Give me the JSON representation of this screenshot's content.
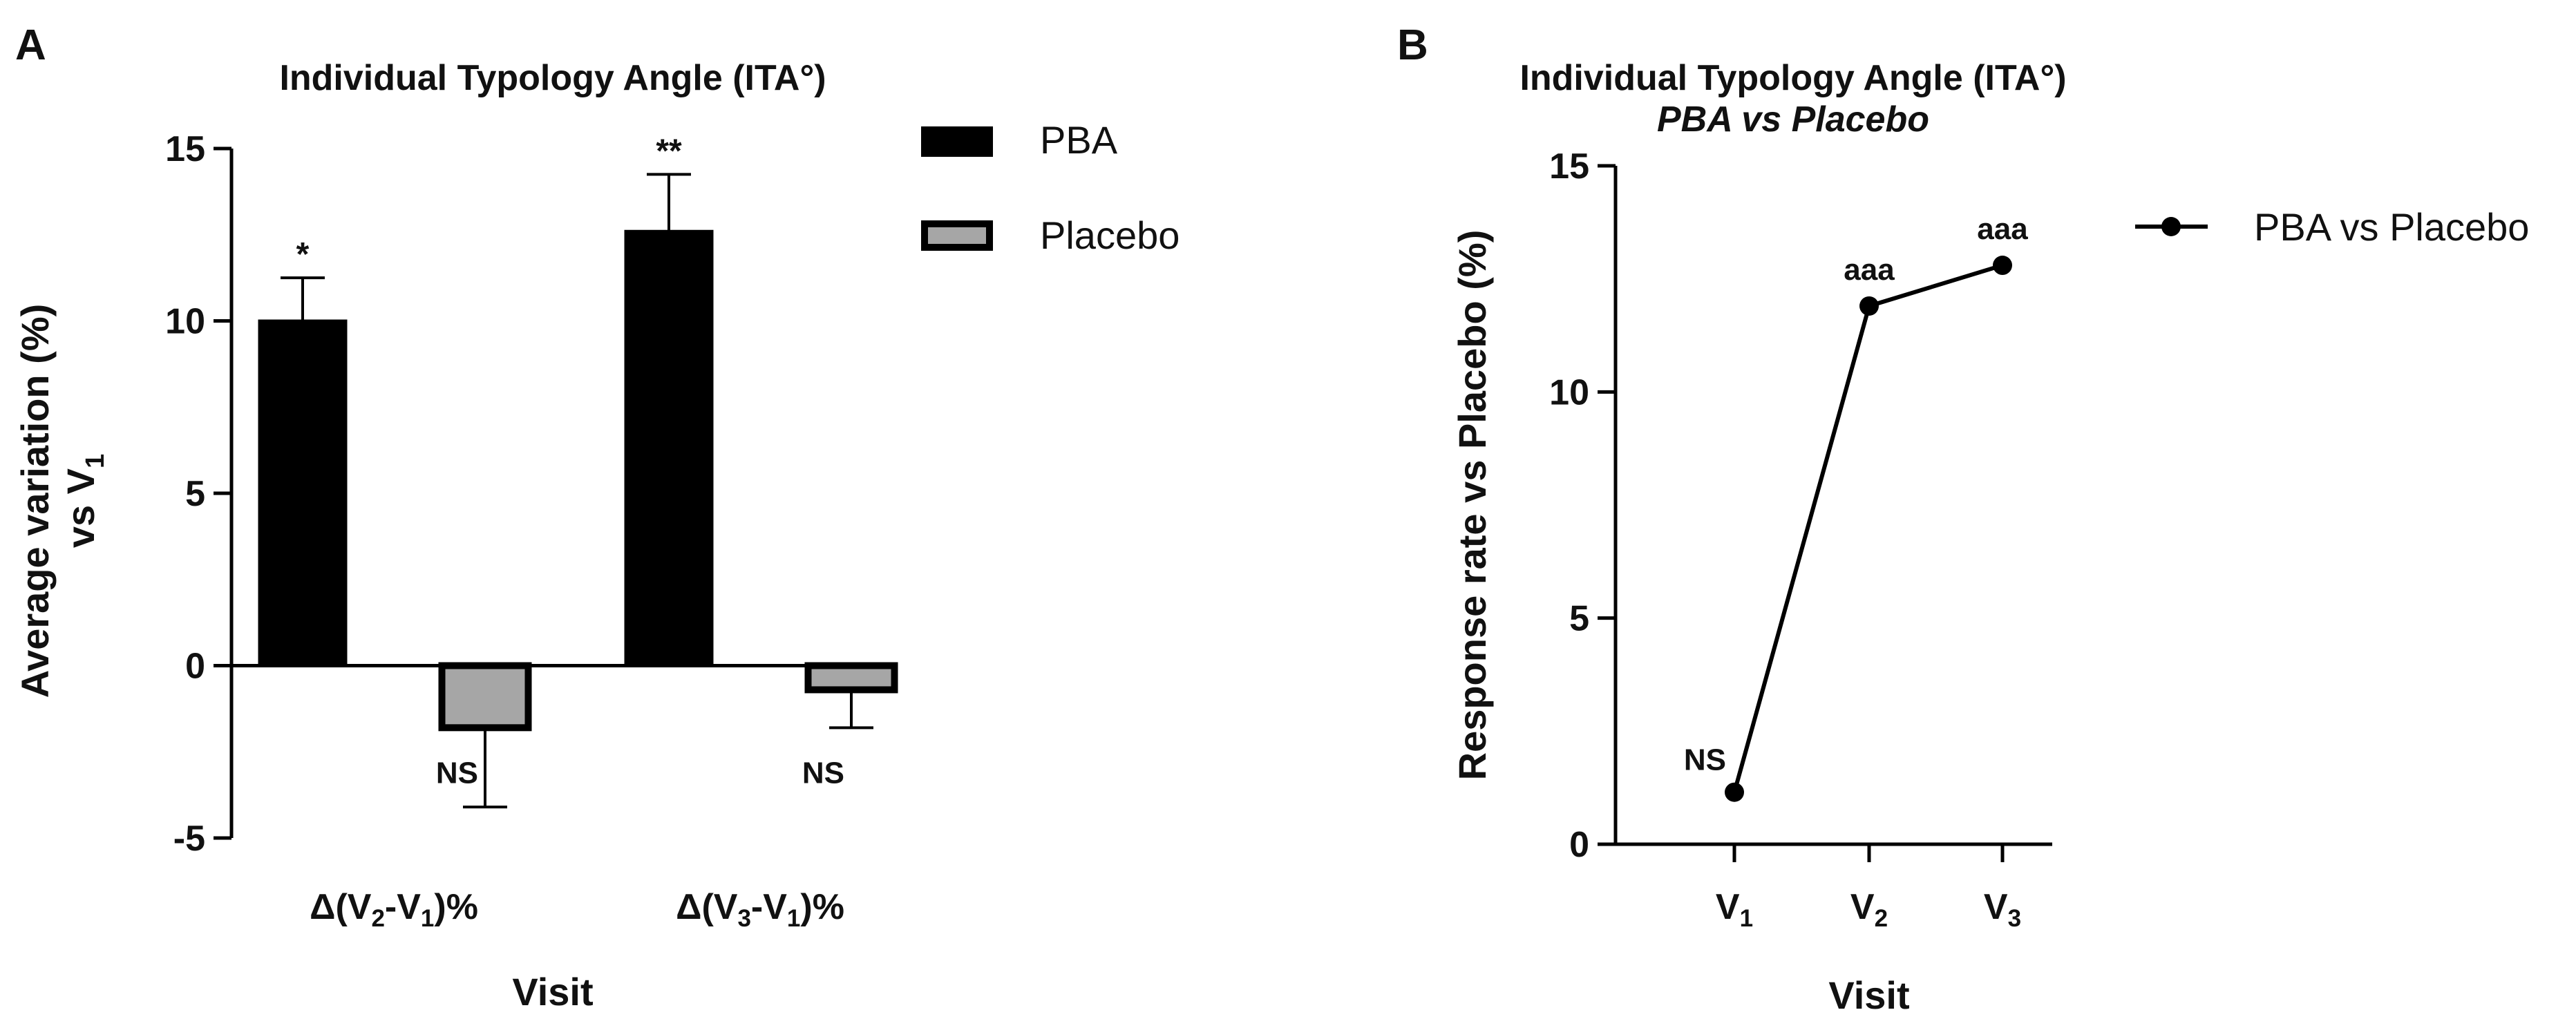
{
  "panels": {
    "a": {
      "letter": "A"
    },
    "b": {
      "letter": "B"
    }
  },
  "chart_data": [
    {
      "type": "bar",
      "title": "Individual Typology Angle (ITA°)",
      "xlabel": "Visit",
      "ylabel_line1": "Average variation (%)",
      "ylabel_line2_prefix": "vs V",
      "ylabel_line2_sub": "1",
      "ylim": [
        -5,
        15
      ],
      "yticks": [
        -5,
        0,
        5,
        10,
        15
      ],
      "ytick_labels": [
        "-5",
        "0",
        "5",
        "10",
        "15"
      ],
      "categories": [
        {
          "pre": "Δ(V",
          "s1": "2",
          "mid": "-V",
          "s2": "1",
          "post": ")%"
        },
        {
          "pre": "Δ(V",
          "s1": "3",
          "mid": "-V",
          "s2": "1",
          "post": ")%"
        }
      ],
      "series": [
        {
          "name": "PBA",
          "color": "#000000",
          "values": [
            10.0,
            12.6
          ],
          "errors": [
            1.25,
            1.65
          ],
          "annotations": [
            "*",
            "**"
          ]
        },
        {
          "name": "Placebo",
          "color": "#a6a6a6",
          "values": [
            -1.8,
            -0.7
          ],
          "errors": [
            2.3,
            1.1
          ],
          "annotations": [
            "NS",
            "NS"
          ]
        }
      ],
      "legend": [
        "PBA",
        "Placebo"
      ]
    },
    {
      "type": "line",
      "title": "Individual Typology Angle (ITA°)",
      "subtitle": "PBA vs Placebo",
      "xlabel": "Visit",
      "ylabel": "Response rate vs Placebo (%)",
      "ylim": [
        0,
        15
      ],
      "yticks": [
        0,
        5,
        10,
        15
      ],
      "ytick_labels": [
        "0",
        "5",
        "10",
        "15"
      ],
      "x": [
        {
          "base": "V",
          "sub": "1"
        },
        {
          "base": "V",
          "sub": "2"
        },
        {
          "base": "V",
          "sub": "3"
        }
      ],
      "series": [
        {
          "name": "PBA vs Placebo",
          "color": "#000000",
          "values": [
            1.15,
            11.9,
            12.8
          ],
          "annotations": [
            "NS",
            "aaa",
            "aaa"
          ]
        }
      ],
      "legend": [
        "PBA vs Placebo"
      ]
    }
  ]
}
